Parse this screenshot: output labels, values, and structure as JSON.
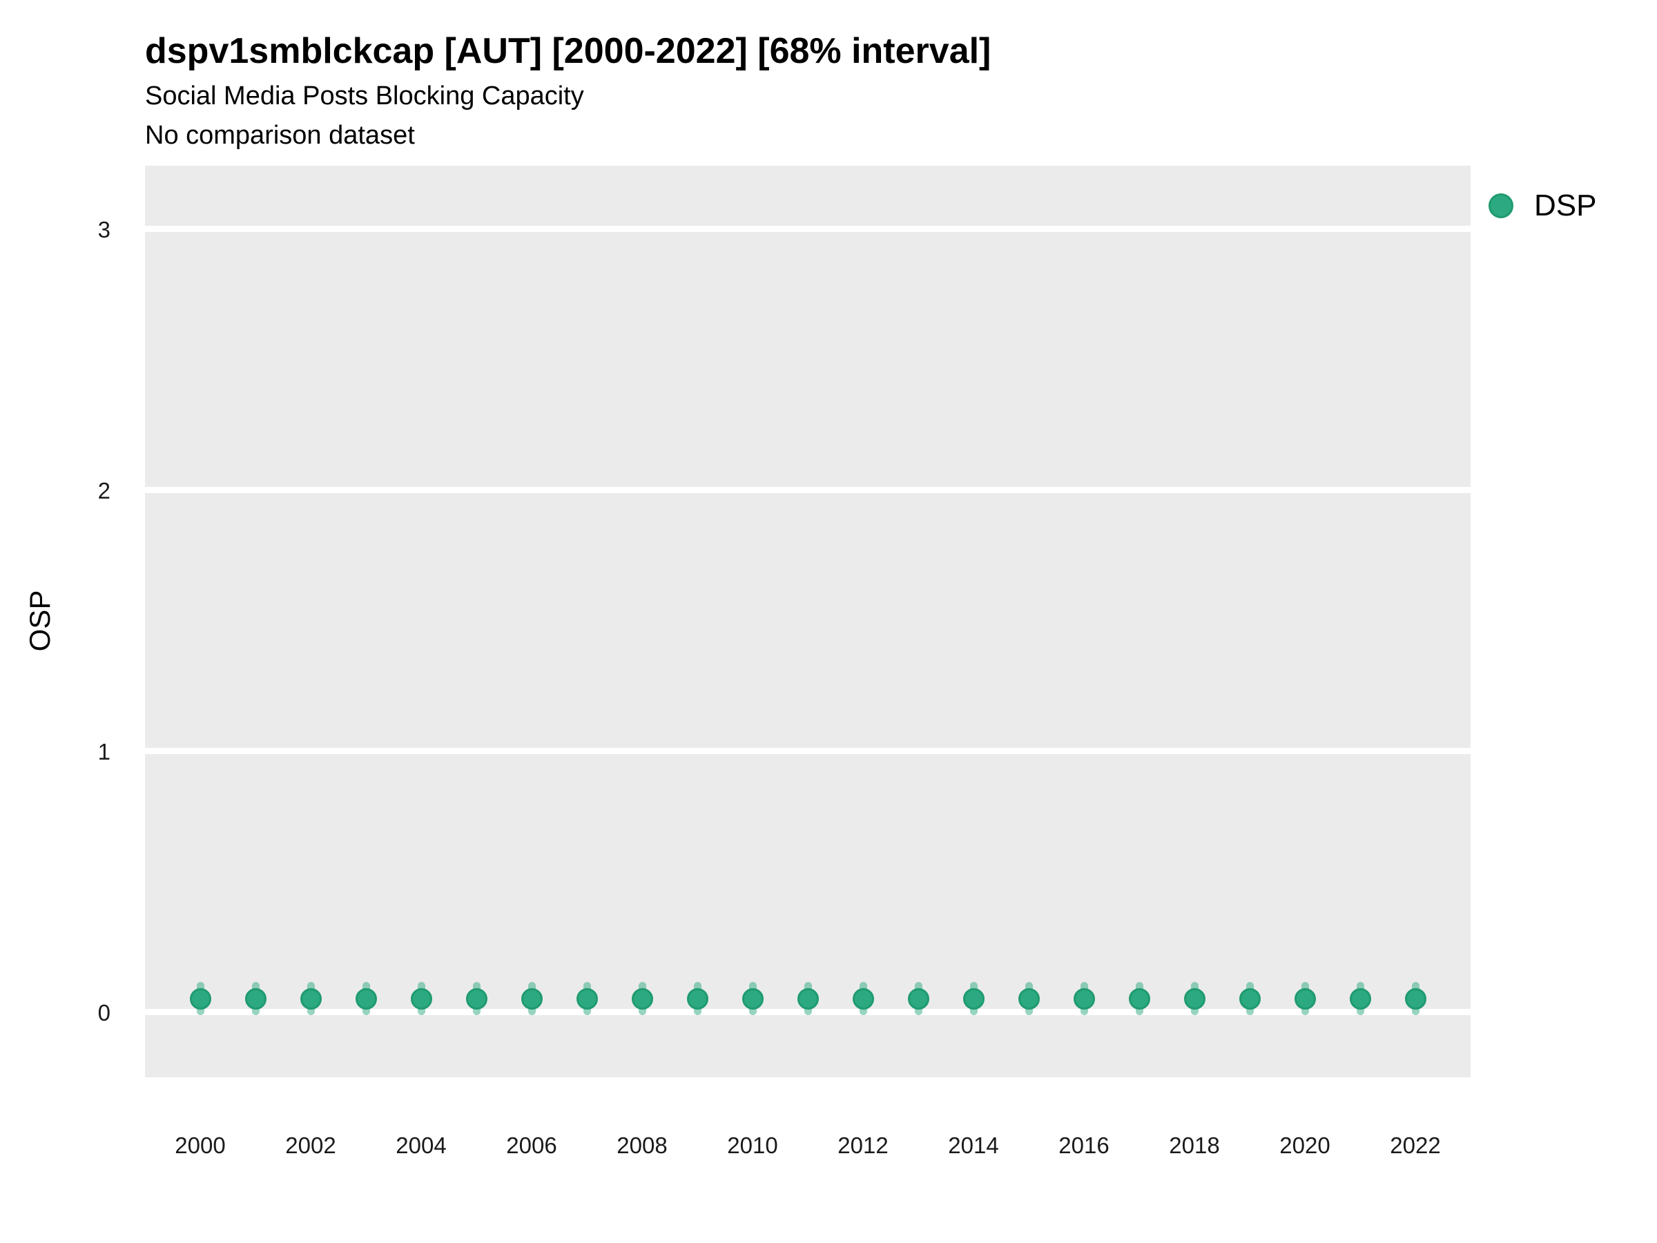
{
  "header": {
    "title": "dspv1smblckcap [AUT] [2000-2022] [68% interval]",
    "subtitle": "Social Media Posts Blocking Capacity",
    "note": "No comparison dataset"
  },
  "legend": {
    "items": [
      {
        "label": "DSP",
        "color": "#2CA981",
        "border_color": "#1F9B6F"
      }
    ]
  },
  "colors": {
    "panel_background": "#EBEBEB",
    "gridline": "#FFFFFF",
    "point_fill": "#2CA981",
    "point_border": "#1F9B6F",
    "interval_bar": "rgba(46,169,127,0.50)",
    "text": "#000000"
  },
  "chart_data": {
    "type": "scatter",
    "title": "dspv1smblckcap [AUT] [2000-2022] [68% interval]",
    "subtitle": "Social Media Posts Blocking Capacity",
    "annotation": "No comparison dataset",
    "xlabel": "",
    "ylabel": "OSP",
    "x": [
      2000,
      2001,
      2002,
      2003,
      2004,
      2005,
      2006,
      2007,
      2008,
      2009,
      2010,
      2011,
      2012,
      2013,
      2014,
      2015,
      2016,
      2017,
      2018,
      2019,
      2020,
      2021,
      2022
    ],
    "series": [
      {
        "name": "DSP",
        "values": [
          0.05,
          0.05,
          0.05,
          0.05,
          0.05,
          0.05,
          0.05,
          0.05,
          0.05,
          0.05,
          0.05,
          0.05,
          0.05,
          0.05,
          0.05,
          0.05,
          0.05,
          0.05,
          0.05,
          0.05,
          0.05,
          0.05,
          0.05
        ],
        "interval_low": [
          -0.012,
          -0.012,
          -0.012,
          -0.012,
          -0.012,
          -0.012,
          -0.012,
          -0.012,
          -0.012,
          -0.012,
          -0.012,
          -0.012,
          -0.012,
          -0.012,
          -0.012,
          -0.012,
          -0.012,
          -0.012,
          -0.012,
          -0.012,
          -0.012,
          -0.012,
          -0.012
        ],
        "interval_high": [
          0.115,
          0.115,
          0.115,
          0.115,
          0.115,
          0.115,
          0.115,
          0.115,
          0.115,
          0.115,
          0.115,
          0.115,
          0.115,
          0.115,
          0.115,
          0.115,
          0.115,
          0.115,
          0.115,
          0.115,
          0.115,
          0.115,
          0.115
        ]
      }
    ],
    "interval_label": "68% interval",
    "xticks": [
      2000,
      2002,
      2004,
      2006,
      2008,
      2010,
      2012,
      2014,
      2016,
      2018,
      2020,
      2022
    ],
    "yticks": [
      0,
      1,
      2,
      3
    ],
    "xlim": [
      1999,
      2023
    ],
    "ylim": [
      -0.25,
      3.243
    ],
    "grid": "major horizontal white lines on gray panel",
    "legend_position": "right-top"
  }
}
